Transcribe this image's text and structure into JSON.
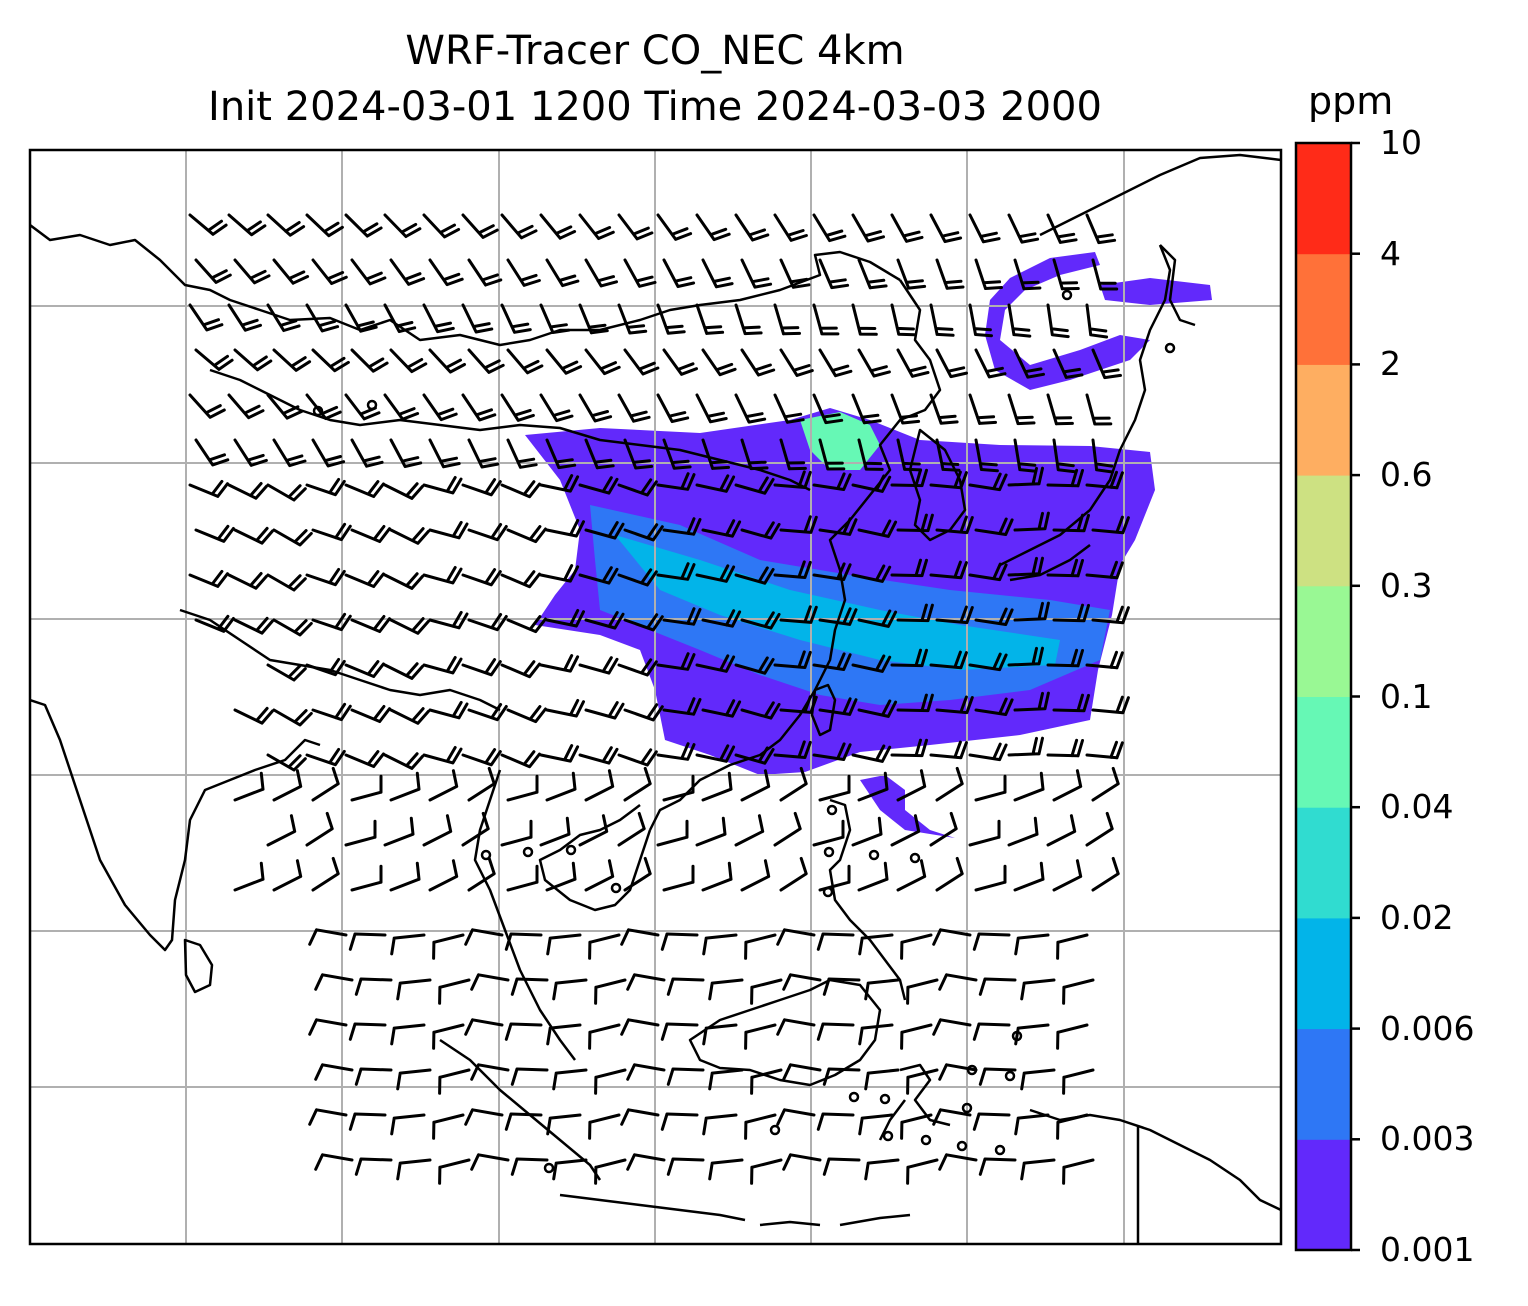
{
  "title_line1": "WRF-Tracer CO_NEC 4km",
  "title_line2": "Init 2024-03-01 1200 Time 2024-03-03 2000",
  "colorbar": {
    "units": "ppm",
    "ticks": [
      "0.001",
      "0.003",
      "0.006",
      "0.02",
      "0.04",
      "0.1",
      "0.3",
      "0.6",
      "2",
      "4",
      "10"
    ],
    "colors": [
      "#6229fb",
      "#2e77f5",
      "#02b4e9",
      "#30dcd0",
      "#66f8b5",
      "#99f894",
      "#cde182",
      "#feae61",
      "#ff7139",
      "#ff2b18"
    ]
  },
  "map": {
    "field": "CO_NEC tracer concentration",
    "overlay": "wind barbs",
    "gridlines": true,
    "background": "#ffffff",
    "coastline_color": "#000000"
  }
}
